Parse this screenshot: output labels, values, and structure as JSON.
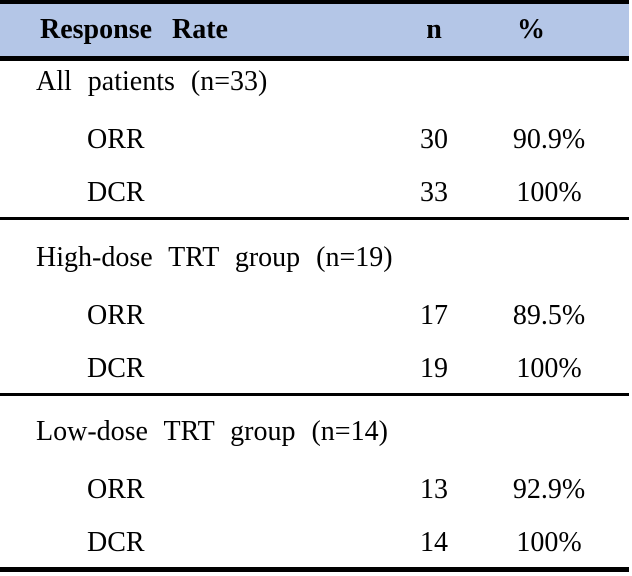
{
  "table": {
    "header": {
      "col1": "Response Rate",
      "col2": "n",
      "col3": "%"
    },
    "sections": [
      {
        "title": "All patients (n=33)",
        "rows": [
          {
            "label": "ORR",
            "n": "30",
            "pct": "90.9%"
          },
          {
            "label": "DCR",
            "n": "33",
            "pct": "100%"
          }
        ]
      },
      {
        "title": "High-dose TRT group (n=19)",
        "rows": [
          {
            "label": "ORR",
            "n": "17",
            "pct": "89.5%"
          },
          {
            "label": "DCR",
            "n": "19",
            "pct": "100%"
          }
        ]
      },
      {
        "title": "Low-dose TRT group (n=14)",
        "rows": [
          {
            "label": "ORR",
            "n": "13",
            "pct": "92.9%"
          },
          {
            "label": "DCR",
            "n": "14",
            "pct": "100%"
          }
        ]
      }
    ],
    "colors": {
      "header_bg": "#b4c6e7",
      "border": "#000000",
      "text": "#000000"
    }
  }
}
